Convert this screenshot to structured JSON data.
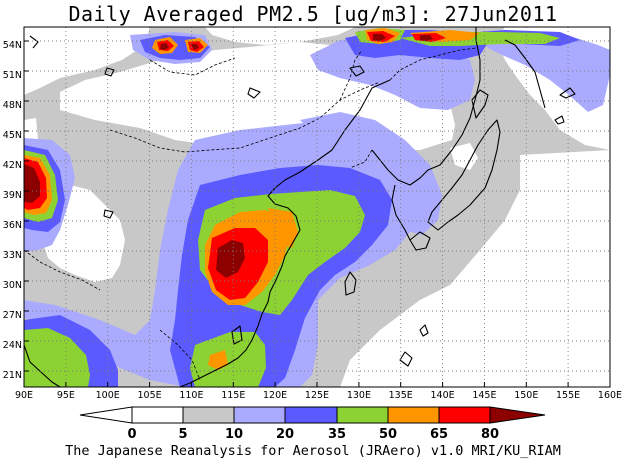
{
  "title": "Daily Averaged PM2.5 [ug/m3]: 27Jun2011",
  "footer": "The Japanese Reanalysis for Aerosol (JRAero) v1.0 MRI/KU_RIAM",
  "map": {
    "lon_range": [
      90,
      160
    ],
    "lat_range": [
      19.5,
      55.5
    ],
    "lon_ticks": [
      "90E",
      "95E",
      "100E",
      "105E",
      "110E",
      "115E",
      "120E",
      "125E",
      "130E",
      "135E",
      "140E",
      "145E",
      "150E",
      "155E",
      "160E"
    ],
    "lat_ticks": [
      "21N",
      "24N",
      "27N",
      "30N",
      "33N",
      "36N",
      "39N",
      "42N",
      "45N",
      "48N",
      "51N",
      "54N"
    ],
    "grid": true,
    "grid_style": "dotted"
  },
  "colorbar": {
    "labels": [
      "0",
      "5",
      "10",
      "20",
      "35",
      "50",
      "65",
      "80"
    ],
    "colors": [
      "#ffffff",
      "#ffffff",
      "#c8c8c8",
      "#aaaaff",
      "#5a5aff",
      "#8cd232",
      "#ff9600",
      "#ff0000",
      "#8c0000"
    ]
  },
  "colors": {
    "white": "#ffffff",
    "gray": "#c8c8c8",
    "lavender": "#aaaaff",
    "blue": "#5a5aff",
    "green": "#8cd232",
    "orange": "#ff9600",
    "red": "#ff0000",
    "darkred": "#8c0000"
  }
}
